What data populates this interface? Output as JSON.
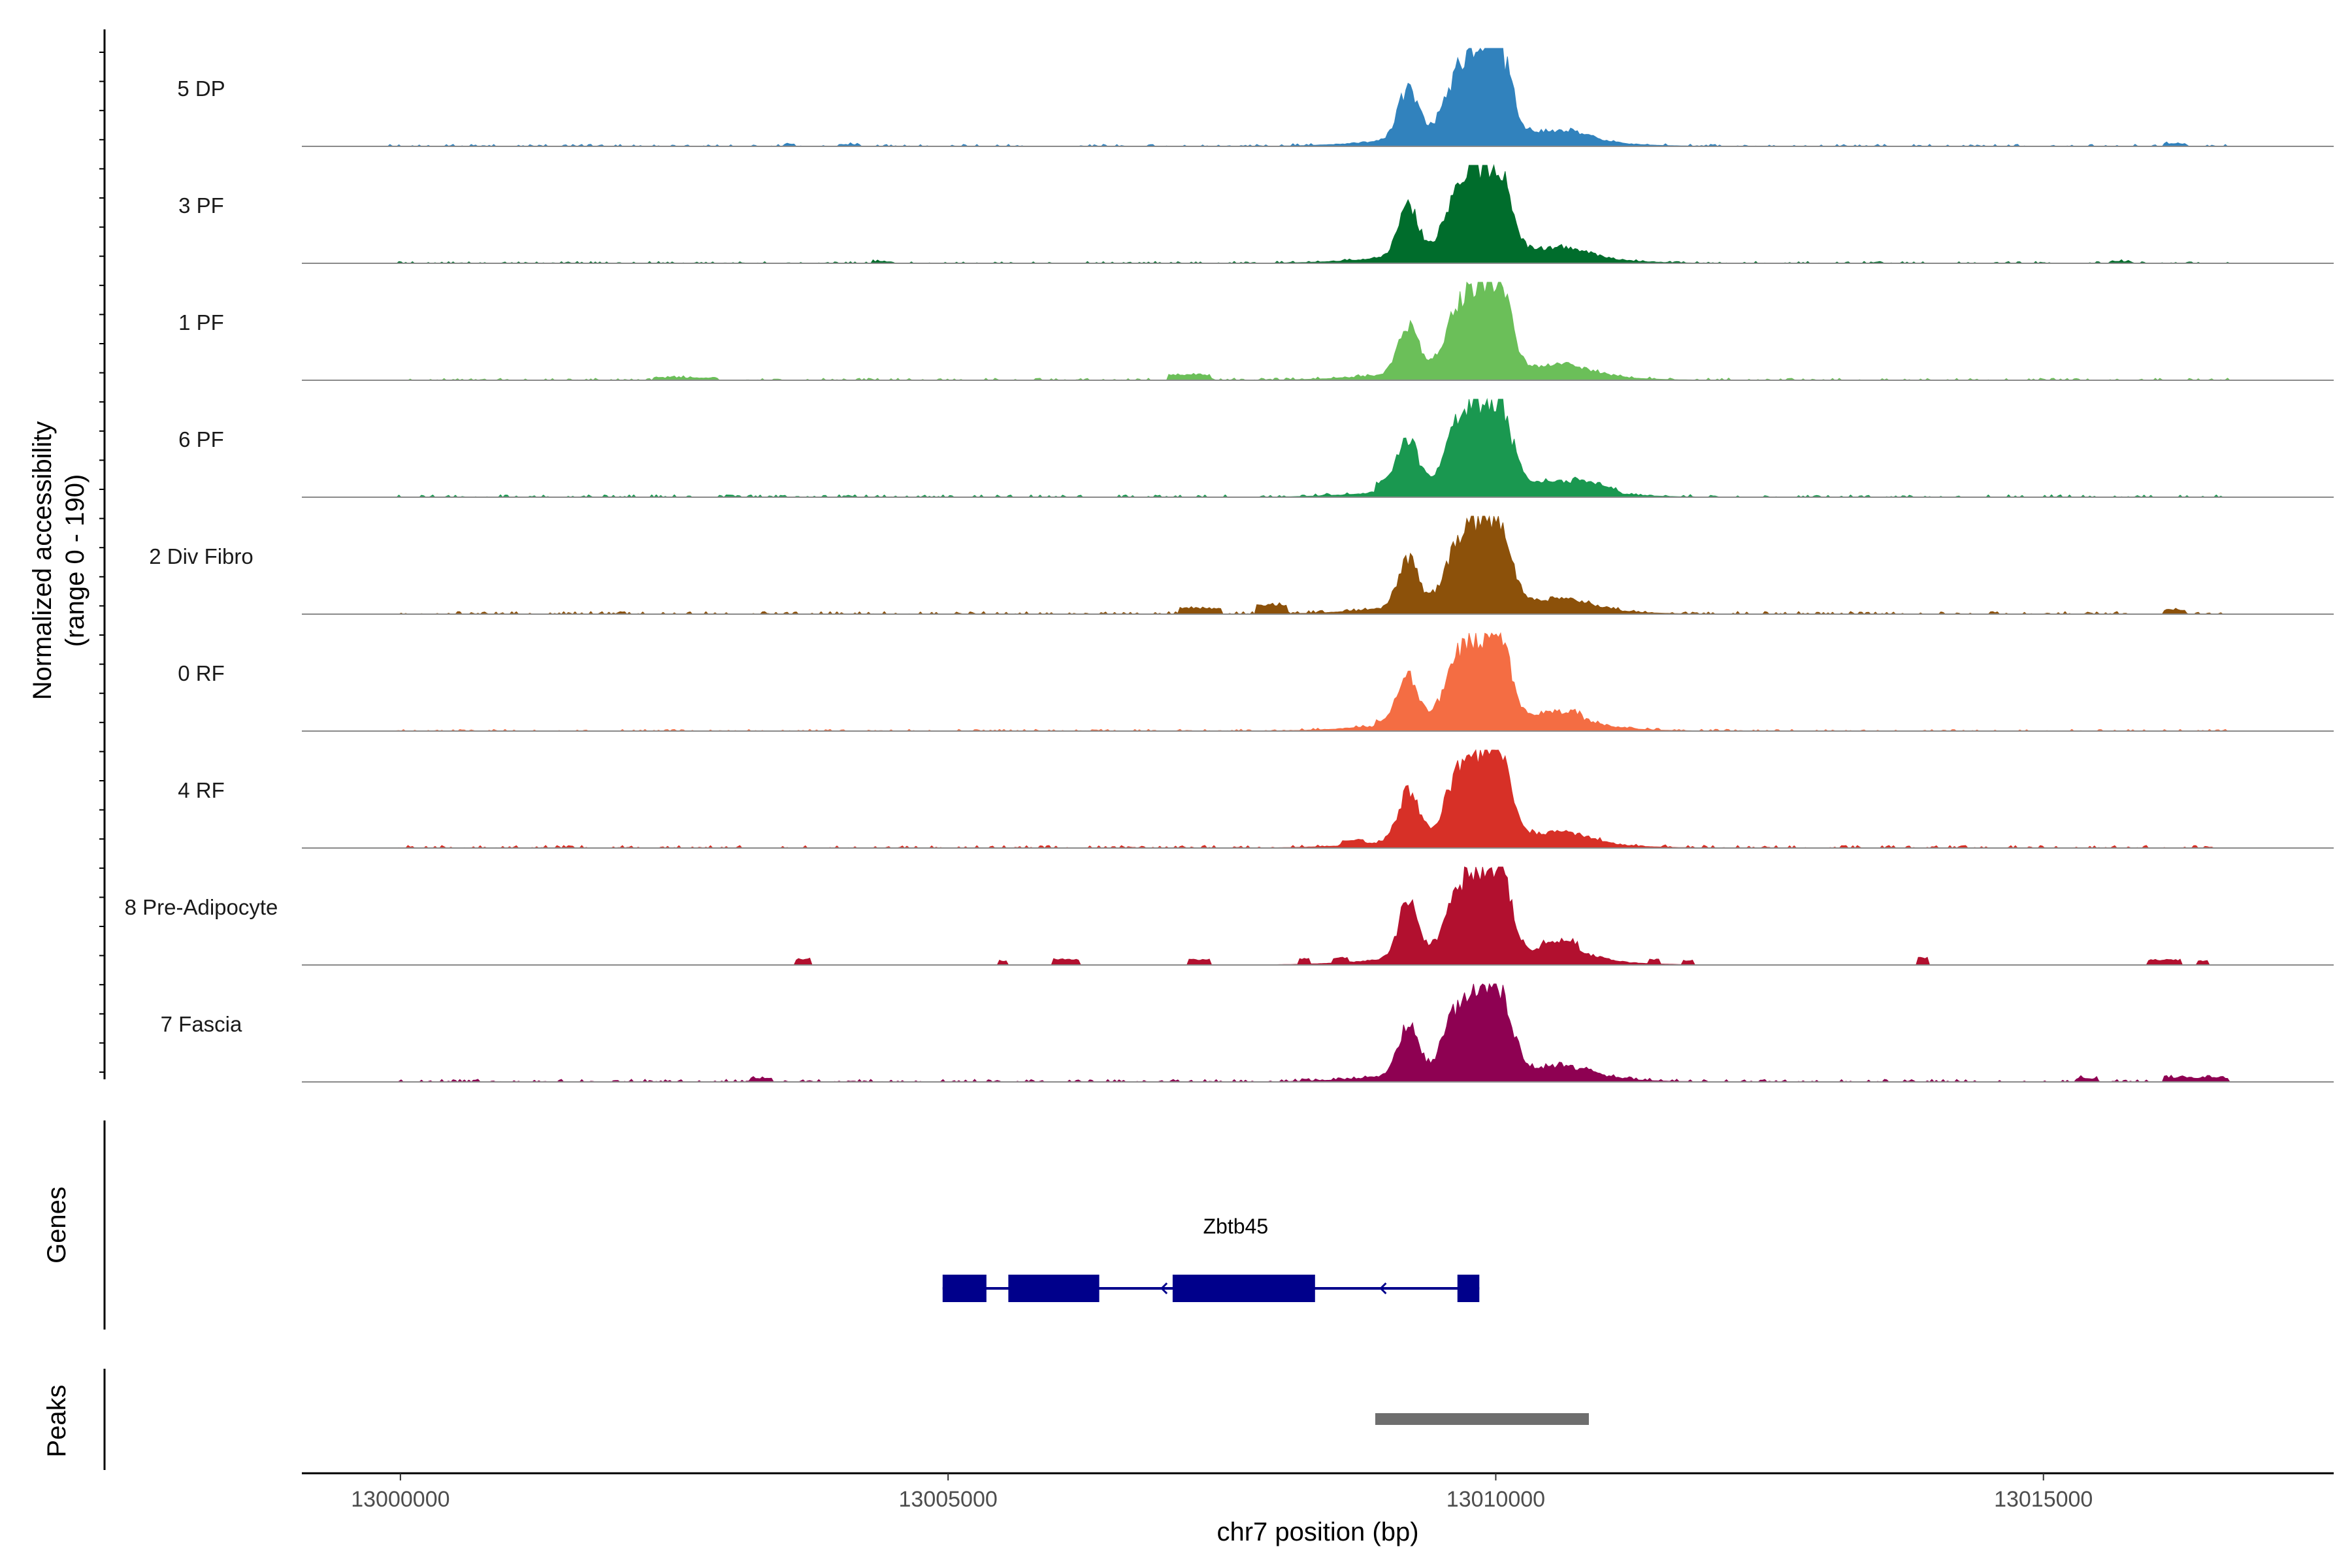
{
  "chart_data": {
    "type": "area",
    "title": "",
    "ylabel": "Normalized accessibility",
    "ylabel_range": "(range 0 - 190)",
    "yrange": [
      0,
      190
    ],
    "xlabel": "chr7 position (bp)",
    "xlim": [
      12999100,
      13017650
    ],
    "xticks": [
      13000000,
      13005000,
      13010000,
      13015000
    ],
    "xtick_labels": [
      "13000000",
      "13005000",
      "13010000",
      "13015000"
    ],
    "tracks_label_genes": "Genes",
    "tracks_label_peaks": "Peaks",
    "series": [
      {
        "name": "5 DP",
        "color": "#3182BD",
        "noise": 0.035,
        "scale": 1.0,
        "extra": [
          [
            13003500,
            13003600,
            0.03
          ],
          [
            13004000,
            13004200,
            0.02
          ],
          [
            13016100,
            13016300,
            0.03
          ]
        ]
      },
      {
        "name": "3 PF",
        "color": "#006D2C",
        "noise": 0.03,
        "scale": 0.98,
        "extra": [
          [
            13004300,
            13004500,
            0.02
          ],
          [
            13015600,
            13015800,
            0.02
          ]
        ]
      },
      {
        "name": "1 PF",
        "color": "#6BBF59",
        "noise": 0.035,
        "scale": 0.97,
        "extra": [
          [
            13002300,
            13002900,
            0.03
          ],
          [
            13007000,
            13007400,
            0.06
          ]
        ]
      },
      {
        "name": "6 PF",
        "color": "#1A9850",
        "noise": 0.04,
        "scale": 0.99,
        "extra": [
          [
            13008900,
            13009100,
            0.1
          ],
          [
            13010700,
            13011100,
            0.05
          ]
        ]
      },
      {
        "name": "2 Div Fibro",
        "color": "#8C510A",
        "noise": 0.045,
        "scale": 0.96,
        "extra": [
          [
            13007100,
            13007500,
            0.07
          ],
          [
            13007800,
            13008100,
            0.1
          ],
          [
            13016100,
            13016300,
            0.05
          ]
        ]
      },
      {
        "name": "0 RF",
        "color": "#F46D43",
        "noise": 0.03,
        "scale": 0.98,
        "extra": [
          [
            13008900,
            13009200,
            0.05
          ],
          [
            13010400,
            13010800,
            0.05
          ]
        ]
      },
      {
        "name": "4 RF",
        "color": "#D73027",
        "noise": 0.045,
        "scale": 0.99,
        "extra": [
          [
            13008600,
            13008800,
            0.06
          ],
          [
            13009900,
            13010100,
            0.07
          ]
        ]
      },
      {
        "name": "8 Pre-Adipocyte",
        "color": "#B2102F",
        "noise": 0.0,
        "scale": 0.995,
        "extra": [
          [
            13003600,
            13003750,
            0.07
          ],
          [
            13005450,
            13005550,
            0.05
          ],
          [
            13005950,
            13006200,
            0.07
          ],
          [
            13007200,
            13007400,
            0.06
          ],
          [
            13008200,
            13008300,
            0.06
          ],
          [
            13008500,
            13008650,
            0.06
          ],
          [
            13009100,
            13009300,
            0.09
          ],
          [
            13010400,
            13010750,
            0.1
          ],
          [
            13011400,
            13011500,
            0.05
          ],
          [
            13011700,
            13011800,
            0.05
          ],
          [
            13013850,
            13013950,
            0.08
          ],
          [
            13015950,
            13016250,
            0.06
          ],
          [
            13016400,
            13016500,
            0.05
          ]
        ]
      },
      {
        "name": "7 Fascia",
        "color": "#8E0152",
        "noise": 0.045,
        "scale": 0.985,
        "extra": [
          [
            13003200,
            13003400,
            0.04
          ],
          [
            13015300,
            13015500,
            0.04
          ],
          [
            13016100,
            13016700,
            0.05
          ]
        ]
      }
    ],
    "peak_profile": [
      [
        13009200,
        90,
        0.5
      ],
      [
        13009650,
        120,
        0.55
      ],
      [
        13009850,
        110,
        0.62
      ],
      [
        13010050,
        100,
        0.72
      ],
      [
        13010650,
        230,
        0.08
      ],
      [
        13009900,
        700,
        0.14
      ]
    ],
    "gene": {
      "name": "Zbtb45",
      "strand": "-",
      "color": "#00008B",
      "start": 13004950,
      "end": 13009850,
      "exons": [
        [
          13004950,
          13005350
        ],
        [
          13005550,
          13006380
        ],
        [
          13007050,
          13008350
        ],
        [
          13009650,
          13009850
        ]
      ]
    },
    "peaks": [
      {
        "start": 13008900,
        "end": 13010850,
        "color": "#6E6E6E"
      }
    ]
  }
}
